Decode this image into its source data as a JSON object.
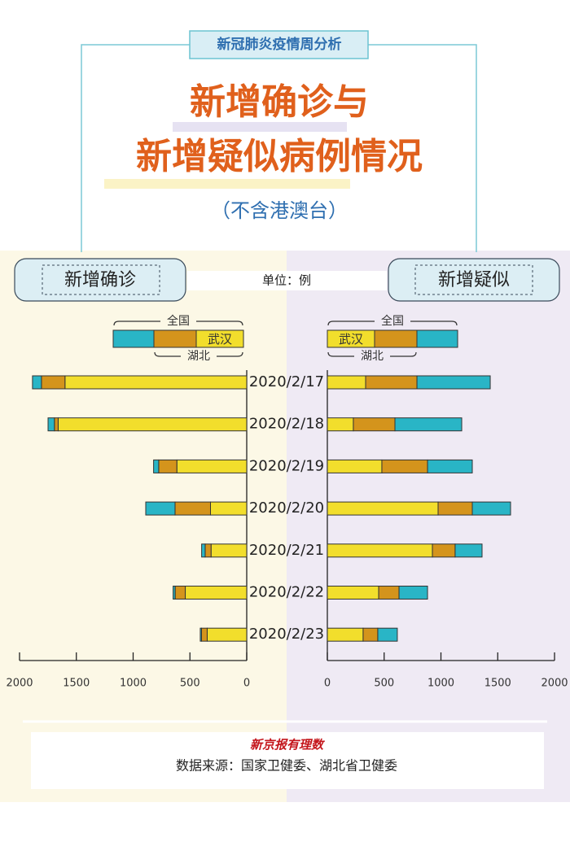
{
  "header": {
    "tag": "新冠肺炎疫情周分析",
    "title_line1": "新增确诊与",
    "title_line2": "新增疑似病例情况",
    "subtitle": "（不含港澳台）"
  },
  "unit": "单位：例",
  "chart_data": [
    {
      "type": "bar",
      "orientation": "horizontal",
      "title": "新增确诊",
      "categories": [
        "2020/2/17",
        "2020/2/18",
        "2020/2/19",
        "2020/2/20",
        "2020/2/21",
        "2020/2/22",
        "2020/2/23"
      ],
      "series": [
        {
          "name": "武汉",
          "color": "#f2de2c",
          "values": [
            1600,
            1660,
            615,
            319,
            314,
            541,
            348
          ]
        },
        {
          "name": "湖北",
          "color": "#d4941c",
          "values": [
            207,
            33,
            160,
            312,
            52,
            89,
            50
          ]
        },
        {
          "name": "全国",
          "color": "#29b5c6",
          "values": [
            79,
            56,
            45,
            258,
            31,
            18,
            11
          ]
        }
      ],
      "xlim": [
        0,
        2000
      ],
      "xticks": [
        0,
        500,
        1000,
        1500,
        2000
      ],
      "direction": "left"
    },
    {
      "type": "bar",
      "orientation": "horizontal",
      "title": "新增疑似",
      "series": [
        {
          "name": "武汉",
          "color": "#f2de2c",
          "values": [
            337,
            229,
            480,
            975,
            925,
            452,
            315
          ]
        },
        {
          "name": "湖北",
          "color": "#d4941c",
          "values": [
            452,
            366,
            402,
            301,
            200,
            179,
            129
          ]
        },
        {
          "name": "全国",
          "color": "#29b5c6",
          "values": [
            645,
            588,
            394,
            337,
            237,
            251,
            172
          ]
        }
      ],
      "xlim": [
        0,
        2000
      ],
      "xticks": [
        0,
        500,
        1000,
        1500,
        2000
      ],
      "direction": "right"
    }
  ],
  "footer": {
    "logo": "新京报有理数",
    "source": "数据来源：国家卫健委、湖北省卫健委"
  }
}
